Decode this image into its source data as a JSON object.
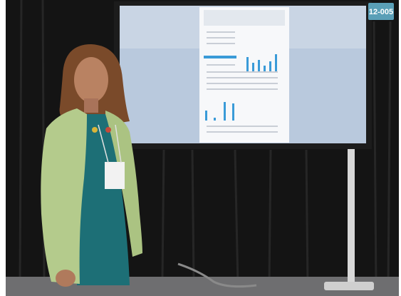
{
  "sign": {
    "label": "12-005"
  }
}
